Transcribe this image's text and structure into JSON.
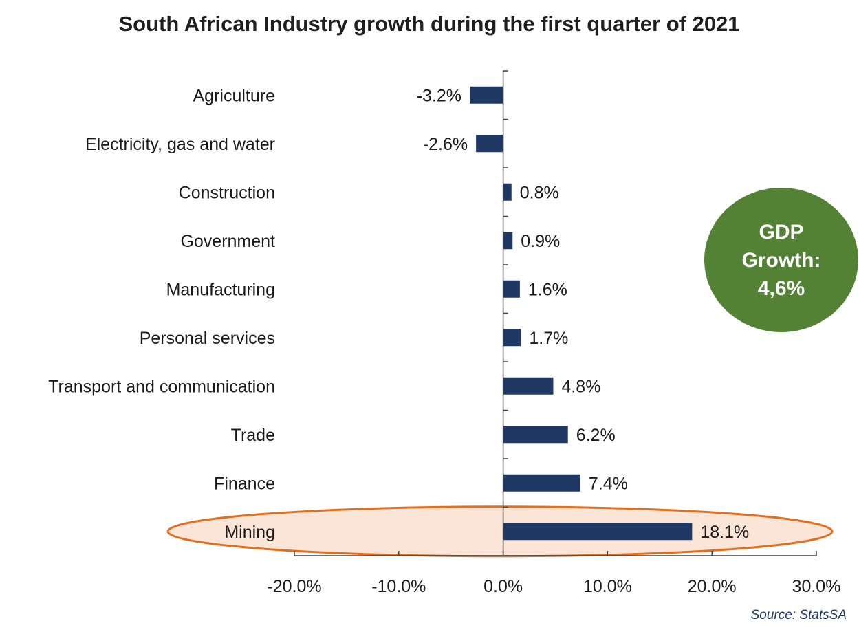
{
  "colors": {
    "bar": "#1f3864",
    "axis": "#404040",
    "highlight_fill": "#fbe5d6",
    "highlight_stroke": "#e07020",
    "gdp_circle": "#548235",
    "gdp_text": "#ffffff"
  },
  "chart_data": {
    "type": "bar",
    "orientation": "horizontal",
    "title": "South African Industry growth during the first quarter of 2021",
    "categories": [
      "Agriculture",
      "Electricity, gas and water",
      "Construction",
      "Government",
      "Manufacturing",
      "Personal services",
      "Transport and communication",
      "Trade ",
      "Finance",
      "Mining"
    ],
    "values": [
      -3.2,
      -2.6,
      0.8,
      0.9,
      1.6,
      1.7,
      4.8,
      6.2,
      7.4,
      18.1
    ],
    "value_labels": [
      "-3.2%",
      "-2.6%",
      "0.8%",
      "0.9%",
      "1.6%",
      "1.7%",
      "4.8%",
      "6.2%",
      "7.4%",
      "18.1%"
    ],
    "xlim": [
      -20,
      30
    ],
    "xticks": [
      -20,
      -10,
      0,
      10,
      20,
      30
    ],
    "xtick_labels": [
      "-20.0%",
      "-10.0%",
      "0.0%",
      "10.0%",
      "20.0%",
      "30.0%"
    ],
    "grid": false,
    "legend": "none",
    "highlighted_category": "Mining"
  },
  "callout": {
    "lines": [
      "GDP",
      "Growth:",
      "4,6%"
    ]
  },
  "source": "Source: StatsSA"
}
